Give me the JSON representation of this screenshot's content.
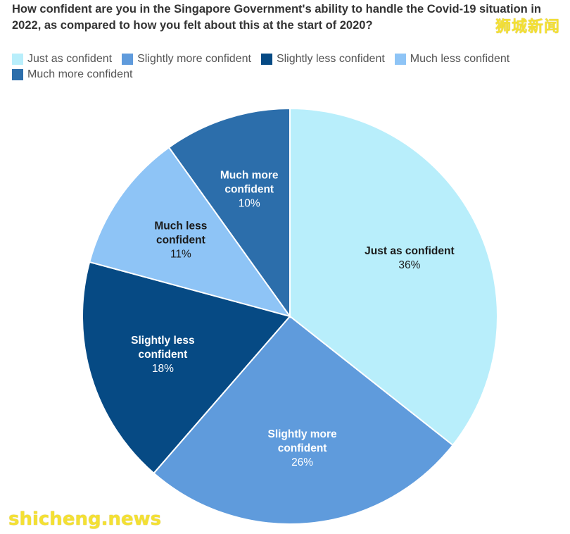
{
  "watermarks": {
    "top_right": "狮城新闻",
    "bottom_left": "shicheng.news"
  },
  "chart_data": {
    "type": "pie",
    "title": "How confident are you in the Singapore Government's ability to handle the Covid-19 situation in 2022, as compared to how you felt about this at the start of 2020?",
    "legend_position": "top",
    "slices": [
      {
        "label": "Just as confident",
        "chart_label_lines": [
          "Just as confident"
        ],
        "value": 36,
        "display": "36%",
        "color": "#b8eefb",
        "text_color": "#1a1a1a"
      },
      {
        "label": "Slightly more confident",
        "chart_label_lines": [
          "Slightly more",
          "confident"
        ],
        "value": 26,
        "display": "26%",
        "color": "#5f9bdc",
        "text_color": "#ffffff"
      },
      {
        "label": "Slightly less confident",
        "chart_label_lines": [
          "Slightly less",
          "confident"
        ],
        "value": 18,
        "display": "18%",
        "color": "#064a84",
        "text_color": "#ffffff"
      },
      {
        "label": "Much less confident",
        "chart_label_lines": [
          "Much less",
          "confident"
        ],
        "value": 11,
        "display": "11%",
        "color": "#8ec4f6",
        "text_color": "#1a1a1a"
      },
      {
        "label": "Much more confident",
        "chart_label_lines": [
          "Much more",
          "confident"
        ],
        "value": 10,
        "display": "10%",
        "color": "#2c6eab",
        "text_color": "#ffffff"
      }
    ],
    "legend_order": [
      0,
      1,
      2,
      3,
      4
    ]
  }
}
